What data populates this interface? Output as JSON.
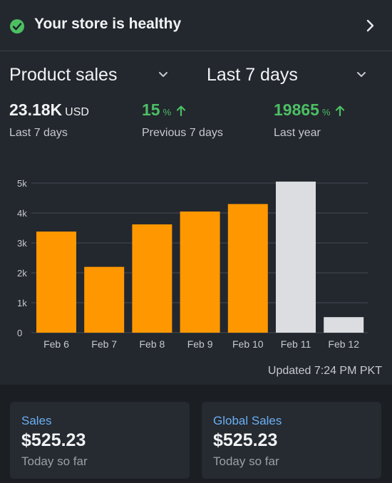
{
  "health": {
    "title": "Your store is healthy",
    "status_color": "#4cbf63"
  },
  "selectors": {
    "metric": "Product sales",
    "period": "Last 7 days"
  },
  "summary": [
    {
      "value": "23.18K",
      "unit": "USD",
      "label": "Last 7 days"
    },
    {
      "value": "15",
      "unit": "%",
      "trend": "up",
      "label": "Previous 7 days"
    },
    {
      "value": "19865",
      "unit": "%",
      "trend": "up",
      "label": "Last year"
    }
  ],
  "chart_data": {
    "type": "bar",
    "categories": [
      "Feb 6",
      "Feb 7",
      "Feb 8",
      "Feb 9",
      "Feb 10",
      "Feb 11",
      "Feb 12"
    ],
    "values": [
      3380,
      2200,
      3620,
      4050,
      4300,
      5050,
      520
    ],
    "highlighted": [
      true,
      true,
      true,
      true,
      true,
      false,
      false
    ],
    "colors": {
      "highlight": "#ff9800",
      "muted": "#dcdde0"
    },
    "yticks": [
      {
        "value": 0,
        "label": "0"
      },
      {
        "value": 1000,
        "label": "1k"
      },
      {
        "value": 2000,
        "label": "2k"
      },
      {
        "value": 3000,
        "label": "3k"
      },
      {
        "value": 4000,
        "label": "4k"
      },
      {
        "value": 5000,
        "label": "5k"
      }
    ],
    "ylim": [
      0,
      5000
    ],
    "grid": true
  },
  "updated": "Updated 7:24 PM PKT",
  "cards": [
    {
      "title": "Sales",
      "value": "$525.23",
      "sub": "Today so far"
    },
    {
      "title": "Global Sales",
      "value": "$525.23",
      "sub": "Today so far"
    }
  ]
}
